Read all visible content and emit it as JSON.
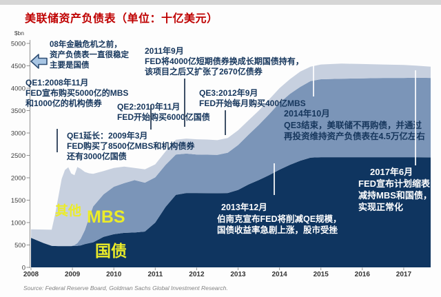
{
  "title": "美联储资产负债表（单位：十亿美元）",
  "source": "Source: Federal Reserve Board, Goldman Sachs Global Investment Research.",
  "colors": {
    "treasury": "#0f3560",
    "mbs": "#7b95b8",
    "other": "#c7d0df",
    "label_yellow": "#ecec28",
    "title_red": "#bf0000",
    "annotation_navy": "#16365c",
    "axis": "#8f8f8f",
    "arrow_fill": "#a9c6e4",
    "arrow_stroke": "#2e4d73"
  },
  "series_labels": {
    "other": "其他",
    "mbs": "MBS",
    "treasury": "国债"
  },
  "annotations": {
    "pre_crisis": {
      "lines": [
        "08年金融危机之前，",
        "资产负债表一直很稳定",
        "主要是国债"
      ]
    },
    "qe1": {
      "lines": [
        "QE1:2008年11月",
        "FED宣布购买5000亿的MBS",
        "和1000亿的机构债券"
      ]
    },
    "qe1_ext": {
      "lines": [
        "QE1延长：2009年3月",
        "FED购买了8500亿MBS和机构债券",
        "还有3000亿国债"
      ]
    },
    "qe2": {
      "lines": [
        "QE2:2010年11月",
        "FED开始购买6000亿国债"
      ]
    },
    "twist_2011": {
      "lines": [
        "2011年9月",
        "FED将4000亿短期债券换成长期国债持有，",
        "该项目之后又扩张了2670亿债券"
      ]
    },
    "qe3": {
      "lines": [
        "QE3:2012年9月",
        "FED开始每月购买400亿MBS"
      ]
    },
    "qe3_end_2014": {
      "lines": [
        "2014年10月",
        "QE3结束，美联储不再购债，并通过",
        "再投资维持资产负债表在4.5万亿左右"
      ]
    },
    "taper_2013": {
      "lines": [
        "2013年12月",
        "伯南克宣布FED将削减QE规模，",
        "国债收益率急剧上涨，股市受挫"
      ]
    },
    "normalize_2017": {
      "lines": [
        "2017年6月",
        "FED宣布计划缩表",
        "减持MBS和国债，",
        "实现正常化"
      ]
    }
  },
  "chart_data": {
    "type": "area",
    "stacked": true,
    "title": "美联储资产负债表",
    "unit": "十亿美元 ($bn)",
    "y_unit_label": "$bn",
    "ylim": [
      0,
      5000
    ],
    "y_ticks": [
      0,
      500,
      1000,
      1500,
      2000,
      2500,
      3000,
      3500,
      4000,
      4500,
      5000
    ],
    "x_tick_labels": [
      "2008",
      "2009",
      "2010",
      "2011",
      "2012",
      "2013",
      "2014",
      "2015",
      "2016",
      "2017"
    ],
    "legend_position": "in-plot-yellow-labels",
    "grid": false,
    "x": [
      2008.0,
      2008.3,
      2008.5,
      2008.58,
      2008.66,
      2008.74,
      2008.82,
      2008.9,
      2008.97,
      2009.05,
      2009.12,
      2009.2,
      2009.3,
      2009.4,
      2009.5,
      2009.75,
      2010.0,
      2010.25,
      2010.5,
      2010.75,
      2011.0,
      2011.25,
      2011.5,
      2011.75,
      2012.0,
      2012.25,
      2012.5,
      2012.75,
      2013.0,
      2013.25,
      2013.5,
      2013.75,
      2014.0,
      2014.25,
      2014.5,
      2014.75,
      2015.0,
      2015.5,
      2016.0,
      2016.5,
      2017.0,
      2017.3,
      2017.65
    ],
    "series": [
      {
        "key": "treasury",
        "name": "国债",
        "values": [
          660,
          545,
          480,
          477,
          475,
          475,
          475,
          475,
          476,
          478,
          480,
          490,
          520,
          540,
          560,
          680,
          740,
          770,
          778,
          800,
          1000,
          1350,
          1620,
          1660,
          1660,
          1658,
          1655,
          1660,
          1730,
          1850,
          1950,
          2060,
          2180,
          2290,
          2380,
          2450,
          2460,
          2460,
          2460,
          2460,
          2460,
          2460,
          2455
        ]
      },
      {
        "key": "mbs",
        "name": "MBS",
        "values": [
          0,
          0,
          0,
          0,
          0,
          0,
          0,
          0,
          0,
          20,
          60,
          150,
          310,
          560,
          800,
          950,
          1060,
          1110,
          1170,
          1090,
          1010,
          940,
          900,
          880,
          860,
          858,
          855,
          900,
          1000,
          1110,
          1230,
          1360,
          1490,
          1580,
          1650,
          1710,
          1740,
          1750,
          1760,
          1770,
          1770,
          1775,
          1775
        ]
      },
      {
        "key": "other",
        "name": "其他",
        "values": [
          190,
          300,
          360,
          700,
          1100,
          1500,
          1700,
          1760,
          1620,
          1560,
          1700,
          1560,
          1300,
          1000,
          730,
          520,
          420,
          370,
          270,
          300,
          290,
          300,
          330,
          335,
          340,
          338,
          330,
          330,
          330,
          320,
          320,
          330,
          330,
          330,
          340,
          320,
          330,
          340,
          320,
          300,
          290,
          270,
          250
        ]
      }
    ]
  }
}
